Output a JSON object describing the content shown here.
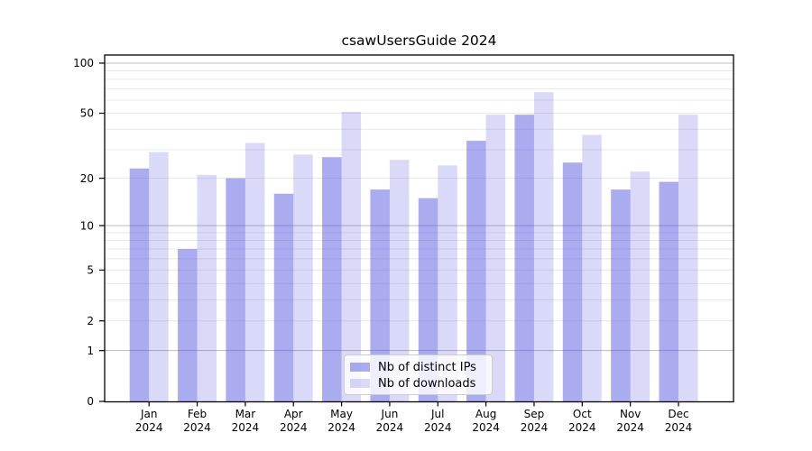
{
  "chart_data": {
    "type": "bar",
    "title": "csawUsersGuide 2024",
    "categories": [
      "Jan",
      "Feb",
      "Mar",
      "Apr",
      "May",
      "Jun",
      "Jul",
      "Aug",
      "Sep",
      "Oct",
      "Nov",
      "Dec"
    ],
    "year_label": "2024",
    "series": [
      {
        "name": "Nb of distinct IPs",
        "values": [
          23,
          7,
          20,
          16,
          27,
          17,
          15,
          34,
          49,
          25,
          17,
          19
        ],
        "color": "rgba(68,68,221,0.45)"
      },
      {
        "name": "Nb of downloads",
        "values": [
          29,
          21,
          33,
          28,
          51,
          26,
          24,
          49,
          67,
          37,
          22,
          49
        ],
        "color": "rgba(68,68,221,0.2)"
      }
    ],
    "yscale": "log(1+x)",
    "ylim": [
      0,
      100
    ],
    "y_tick_labels": [
      0,
      1,
      2,
      5,
      10,
      20,
      50,
      100
    ],
    "y_major_gridlines": [
      1,
      10,
      100
    ],
    "y_minor_gridlines": [
      2,
      3,
      4,
      5,
      6,
      7,
      8,
      9,
      20,
      30,
      40,
      50,
      60,
      70,
      80,
      90
    ],
    "grid_major_color": "#bdbdbd",
    "grid_minor_color": "#e8e8e8",
    "axis_color": "#000000",
    "legend_position": "lower center",
    "grid": "on"
  }
}
